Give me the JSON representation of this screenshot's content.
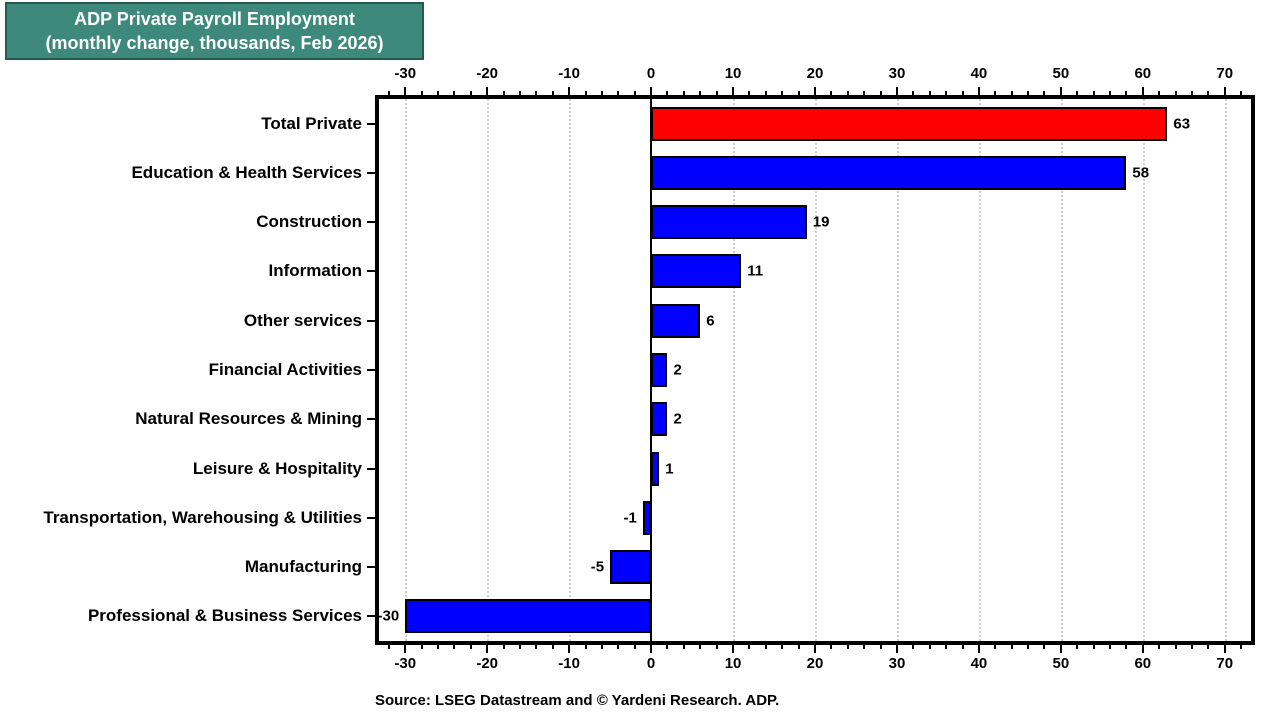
{
  "title": {
    "line1": "ADP Private Payroll Employment",
    "line2": "(monthly change, thousands, Feb 2026)"
  },
  "source_note": "Source: LSEG Datastream and © Yardeni Research. ADP.",
  "colors": {
    "title_bg": "#3D8A7C",
    "title_border": "#26584E",
    "bar_highlight": "#FF0000",
    "bar_default": "#0000FF",
    "grid": "#CFCFCF",
    "axis": "#000000"
  },
  "chart_data": {
    "type": "bar",
    "orientation": "horizontal",
    "title": "ADP Private Payroll Employment (monthly change, thousands, Feb 2026)",
    "categories": [
      "Total Private",
      "Education & Health Services",
      "Construction",
      "Information",
      "Other services",
      "Financial Activities",
      "Natural Resources & Mining",
      "Leisure & Hospitality",
      "Transportation, Warehousing & Utilities",
      "Manufacturing",
      "Professional & Business Services"
    ],
    "values": [
      63,
      58,
      19,
      11,
      6,
      2,
      2,
      1,
      -1,
      -5,
      -30
    ],
    "bar_colors": [
      "#FF0000",
      "#0000FF",
      "#0000FF",
      "#0000FF",
      "#0000FF",
      "#0000FF",
      "#0000FF",
      "#0000FF",
      "#0000FF",
      "#0000FF",
      "#0000FF"
    ],
    "value_labels": [
      "63",
      "58",
      "19",
      "11",
      "6",
      "2",
      "2",
      "1",
      "-1",
      "-5",
      "-30"
    ],
    "xlim": [
      -33.2,
      73.2
    ],
    "xticks": [
      -30,
      -20,
      -10,
      0,
      10,
      20,
      30,
      40,
      50,
      60,
      70
    ],
    "xtick_labels": [
      "-30",
      "-20",
      "-10",
      "0",
      "10",
      "20",
      "30",
      "40",
      "50",
      "60",
      "70"
    ],
    "minor_tick_step": 2,
    "grid": "vertical dotted at major ticks, solid black zero line",
    "legend": "none"
  }
}
